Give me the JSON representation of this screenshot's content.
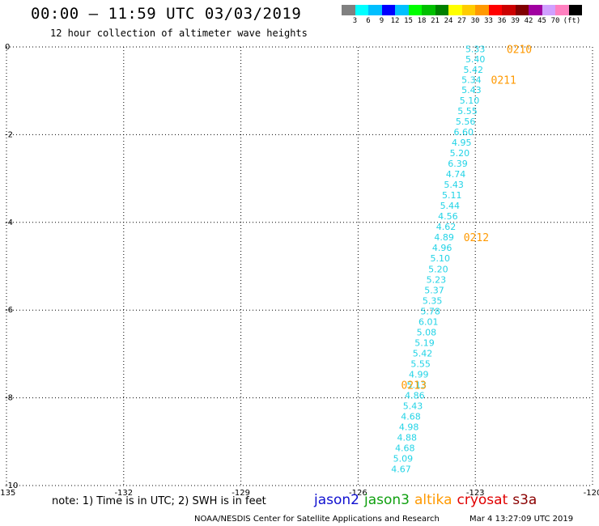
{
  "header": {
    "title": "00:00 – 11:59 UTC 03/03/2019",
    "subtitle": "12 hour collection of altimeter wave heights"
  },
  "colorbar": {
    "unit": "(ft)",
    "swatches": [
      "#808080",
      "#00ffff",
      "#00bfff",
      "#0000ff",
      "#00c0ff",
      "#00ff00",
      "#00c000",
      "#008000",
      "#ffff00",
      "#ffcc00",
      "#ff9900",
      "#ff0000",
      "#cc0000",
      "#800000",
      "#a000a0",
      "#d0a0ff",
      "#ff80c0",
      "#000000"
    ],
    "labels": [
      "3",
      "6",
      "9",
      "12",
      "15",
      "18",
      "21",
      "24",
      "27",
      "30",
      "33",
      "36",
      "39",
      "42",
      "45",
      "70"
    ]
  },
  "map": {
    "x_ticks": [
      "-135",
      "-132",
      "-129",
      "-126",
      "-123",
      "-120"
    ],
    "y_ticks": [
      "0",
      "-2",
      "-4",
      "-6",
      "-8",
      "-10"
    ],
    "lon_range": [
      -135,
      -120
    ],
    "lat_range": [
      -10,
      0
    ],
    "track_color": "#22d3e6",
    "time_color": "#ff9900",
    "readings": [
      {
        "lon": -123.0,
        "lat": -0.05,
        "v": "5.33"
      },
      {
        "lon": -123.0,
        "lat": -0.28,
        "v": "5.40"
      },
      {
        "lon": -123.05,
        "lat": -0.52,
        "v": "5.42"
      },
      {
        "lon": -123.1,
        "lat": -0.75,
        "v": "5.34"
      },
      {
        "lon": -123.1,
        "lat": -0.98,
        "v": "5.43"
      },
      {
        "lon": -123.15,
        "lat": -1.22,
        "v": "5.10"
      },
      {
        "lon": -123.2,
        "lat": -1.46,
        "v": "5.55"
      },
      {
        "lon": -123.25,
        "lat": -1.7,
        "v": "5.56"
      },
      {
        "lon": -123.3,
        "lat": -1.94,
        "v": "6.60"
      },
      {
        "lon": -123.35,
        "lat": -2.18,
        "v": "4.95"
      },
      {
        "lon": -123.4,
        "lat": -2.42,
        "v": "5.20"
      },
      {
        "lon": -123.45,
        "lat": -2.66,
        "v": "6.39"
      },
      {
        "lon": -123.5,
        "lat": -2.9,
        "v": "4.74"
      },
      {
        "lon": -123.55,
        "lat": -3.14,
        "v": "5.43"
      },
      {
        "lon": -123.6,
        "lat": -3.38,
        "v": "5.11"
      },
      {
        "lon": -123.65,
        "lat": -3.62,
        "v": "5.44"
      },
      {
        "lon": -123.7,
        "lat": -3.86,
        "v": "4.56"
      },
      {
        "lon": -123.75,
        "lat": -4.1,
        "v": "4.62"
      },
      {
        "lon": -123.8,
        "lat": -4.34,
        "v": "4.89"
      },
      {
        "lon": -123.85,
        "lat": -4.58,
        "v": "4.96"
      },
      {
        "lon": -123.9,
        "lat": -4.82,
        "v": "5.10"
      },
      {
        "lon": -123.95,
        "lat": -5.06,
        "v": "5.20"
      },
      {
        "lon": -124.0,
        "lat": -5.3,
        "v": "5.23"
      },
      {
        "lon": -124.05,
        "lat": -5.54,
        "v": "5.37"
      },
      {
        "lon": -124.1,
        "lat": -5.78,
        "v": "5.35"
      },
      {
        "lon": -124.15,
        "lat": -6.02,
        "v": "5.78"
      },
      {
        "lon": -124.2,
        "lat": -6.26,
        "v": "6.01"
      },
      {
        "lon": -124.25,
        "lat": -6.5,
        "v": "5.08"
      },
      {
        "lon": -124.3,
        "lat": -6.74,
        "v": "5.19"
      },
      {
        "lon": -124.35,
        "lat": -6.98,
        "v": "5.42"
      },
      {
        "lon": -124.4,
        "lat": -7.22,
        "v": "5.55"
      },
      {
        "lon": -124.45,
        "lat": -7.46,
        "v": "4.99"
      },
      {
        "lon": -124.5,
        "lat": -7.7,
        "v": "5.13"
      },
      {
        "lon": -124.55,
        "lat": -7.94,
        "v": "4.86"
      },
      {
        "lon": -124.6,
        "lat": -8.18,
        "v": "5.43"
      },
      {
        "lon": -124.65,
        "lat": -8.42,
        "v": "4.68"
      },
      {
        "lon": -124.7,
        "lat": -8.66,
        "v": "4.98"
      },
      {
        "lon": -124.75,
        "lat": -8.9,
        "v": "4.88"
      },
      {
        "lon": -124.8,
        "lat": -9.14,
        "v": "4.68"
      },
      {
        "lon": -124.85,
        "lat": -9.38,
        "v": "5.09"
      },
      {
        "lon": -124.9,
        "lat": -9.62,
        "v": "4.67"
      }
    ],
    "time_labels": [
      {
        "lon": -122.2,
        "lat": -0.05,
        "t": "0210"
      },
      {
        "lon": -122.6,
        "lat": -0.75,
        "t": "0211"
      },
      {
        "lon": -123.3,
        "lat": -4.34,
        "t": "0212"
      },
      {
        "lon": -124.9,
        "lat": -7.7,
        "t": "0213"
      }
    ]
  },
  "footer": {
    "note": "note:  1) Time is in UTC;  2) SWH is in feet",
    "satellites": [
      {
        "name": "jason2",
        "color": "#1010d0"
      },
      {
        "name": "jason3",
        "color": "#10a010"
      },
      {
        "name": "altika",
        "color": "#ff9900"
      },
      {
        "name": "cryosat",
        "color": "#e00000"
      },
      {
        "name": "s3a",
        "color": "#8b0000"
      }
    ],
    "credit": "NOAA/NESDIS Center for Satellite Applications and Research",
    "timestamp": "Mar  4 13:27:09 UTC 2019"
  }
}
